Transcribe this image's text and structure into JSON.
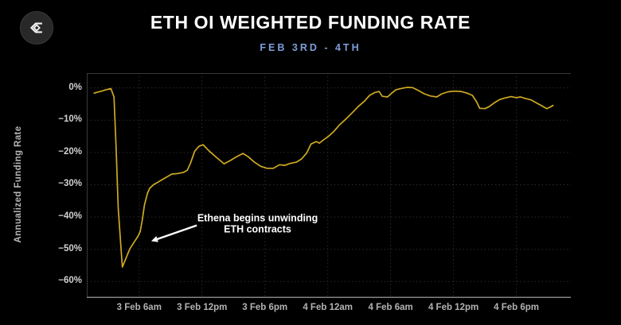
{
  "header": {
    "title": "ETH OI WEIGHTED FUNDING RATE",
    "subtitle": "FEB 3RD - 4TH",
    "logo_icon": "velo-sigma-logo"
  },
  "colors": {
    "background": "#000000",
    "line": "#cfaa22",
    "subtitle_blue": "#7d9ed8",
    "gridline": "#2b2b2b",
    "plot_border": "#3a3a3a",
    "axis_line": "#828282",
    "tick_text": "#c8c8c8",
    "annotation_text": "#ffffff"
  },
  "chart_data": {
    "type": "line",
    "title": "ETH OI WEIGHTED FUNDING RATE",
    "subtitle": "FEB 3RD - 4TH",
    "xlabel": "",
    "ylabel": "Annualized Funding Rate",
    "x_unit": "hours since 3 Feb 12am",
    "xlim": [
      1.0,
      47.2
    ],
    "ylim": [
      -65.1,
      4.6
    ],
    "grid": true,
    "legend": "none",
    "line_color": "#cfaa22",
    "x_ticks": [
      {
        "t": 6,
        "label": "3 Feb 6am"
      },
      {
        "t": 12,
        "label": "3 Feb 12pm"
      },
      {
        "t": 18,
        "label": "3 Feb 6pm"
      },
      {
        "t": 24,
        "label": "4 Feb 12am"
      },
      {
        "t": 30,
        "label": "4 Feb 6am"
      },
      {
        "t": 36,
        "label": "4 Feb 12pm"
      },
      {
        "t": 42,
        "label": "4 Feb 6pm"
      }
    ],
    "y_ticks": [
      {
        "v": 0,
        "label": "0%"
      },
      {
        "v": -10,
        "label": "−10%"
      },
      {
        "v": -20,
        "label": "−20%"
      },
      {
        "v": -30,
        "label": "−30%"
      },
      {
        "v": -40,
        "label": "−40%"
      },
      {
        "v": -50,
        "label": "−50%"
      },
      {
        "v": -60,
        "label": "−60%"
      }
    ],
    "series": [
      {
        "name": "ETH OI weighted funding rate (annualized %)",
        "points": [
          [
            1.7,
            -1.6
          ],
          [
            2.3,
            -1.1
          ],
          [
            2.8,
            -0.6
          ],
          [
            3.3,
            -0.2
          ],
          [
            3.6,
            -2.8
          ],
          [
            3.8,
            -18.3
          ],
          [
            4.0,
            -37.3
          ],
          [
            4.3,
            -51.1
          ],
          [
            4.4,
            -55.5
          ],
          [
            4.7,
            -53.1
          ],
          [
            5.1,
            -49.9
          ],
          [
            5.5,
            -47.9
          ],
          [
            5.9,
            -45.9
          ],
          [
            6.1,
            -44.5
          ],
          [
            6.3,
            -41.0
          ],
          [
            6.5,
            -36.3
          ],
          [
            6.8,
            -32.6
          ],
          [
            7.0,
            -31.1
          ],
          [
            7.4,
            -29.9
          ],
          [
            7.8,
            -29.2
          ],
          [
            8.2,
            -28.4
          ],
          [
            8.7,
            -27.5
          ],
          [
            9.1,
            -26.7
          ],
          [
            9.7,
            -26.5
          ],
          [
            10.2,
            -26.2
          ],
          [
            10.6,
            -25.5
          ],
          [
            10.9,
            -23.3
          ],
          [
            11.3,
            -19.6
          ],
          [
            11.7,
            -18.1
          ],
          [
            12.1,
            -17.6
          ],
          [
            12.7,
            -19.6
          ],
          [
            13.4,
            -21.6
          ],
          [
            14.1,
            -23.5
          ],
          [
            14.7,
            -22.5
          ],
          [
            15.3,
            -21.3
          ],
          [
            15.9,
            -20.3
          ],
          [
            16.4,
            -21.3
          ],
          [
            17.0,
            -23.0
          ],
          [
            17.6,
            -24.3
          ],
          [
            18.2,
            -24.9
          ],
          [
            18.8,
            -24.9
          ],
          [
            19.4,
            -23.8
          ],
          [
            19.9,
            -24.0
          ],
          [
            20.4,
            -23.4
          ],
          [
            21.0,
            -23.0
          ],
          [
            21.5,
            -22.0
          ],
          [
            22.0,
            -20.1
          ],
          [
            22.4,
            -17.4
          ],
          [
            22.9,
            -16.6
          ],
          [
            23.2,
            -17.1
          ],
          [
            23.6,
            -16.1
          ],
          [
            24.1,
            -14.9
          ],
          [
            24.6,
            -13.4
          ],
          [
            25.1,
            -11.5
          ],
          [
            25.7,
            -9.7
          ],
          [
            26.3,
            -7.8
          ],
          [
            26.9,
            -5.8
          ],
          [
            27.5,
            -4.1
          ],
          [
            28.0,
            -2.3
          ],
          [
            28.5,
            -1.4
          ],
          [
            28.9,
            -1.1
          ],
          [
            29.2,
            -2.6
          ],
          [
            29.7,
            -2.8
          ],
          [
            30.1,
            -1.6
          ],
          [
            30.5,
            -0.6
          ],
          [
            31.1,
            -0.1
          ],
          [
            31.6,
            0.2
          ],
          [
            32.1,
            0.1
          ],
          [
            32.7,
            -0.9
          ],
          [
            33.2,
            -1.8
          ],
          [
            33.8,
            -2.5
          ],
          [
            34.4,
            -2.8
          ],
          [
            34.9,
            -1.8
          ],
          [
            35.5,
            -1.2
          ],
          [
            36.1,
            -1.0
          ],
          [
            36.7,
            -1.1
          ],
          [
            37.3,
            -1.6
          ],
          [
            37.8,
            -2.3
          ],
          [
            38.2,
            -4.3
          ],
          [
            38.5,
            -6.3
          ],
          [
            39.0,
            -6.4
          ],
          [
            39.4,
            -5.8
          ],
          [
            39.9,
            -4.6
          ],
          [
            40.4,
            -3.6
          ],
          [
            40.9,
            -3.1
          ],
          [
            41.5,
            -2.7
          ],
          [
            42.0,
            -3.0
          ],
          [
            42.4,
            -2.8
          ],
          [
            42.8,
            -3.2
          ],
          [
            43.4,
            -3.7
          ],
          [
            43.9,
            -4.6
          ],
          [
            44.4,
            -5.5
          ],
          [
            44.9,
            -6.4
          ],
          [
            45.2,
            -6.0
          ],
          [
            45.5,
            -5.4
          ]
        ]
      }
    ],
    "annotation": {
      "lines": [
        "Ethena begins unwinding",
        "ETH contracts"
      ],
      "text_pos": {
        "t": 17.3,
        "v": -41.3
      },
      "arrow": {
        "from": {
          "t": 11.5,
          "v": -42.6
        },
        "to": {
          "t": 7.15,
          "v": -47.5
        }
      }
    }
  }
}
